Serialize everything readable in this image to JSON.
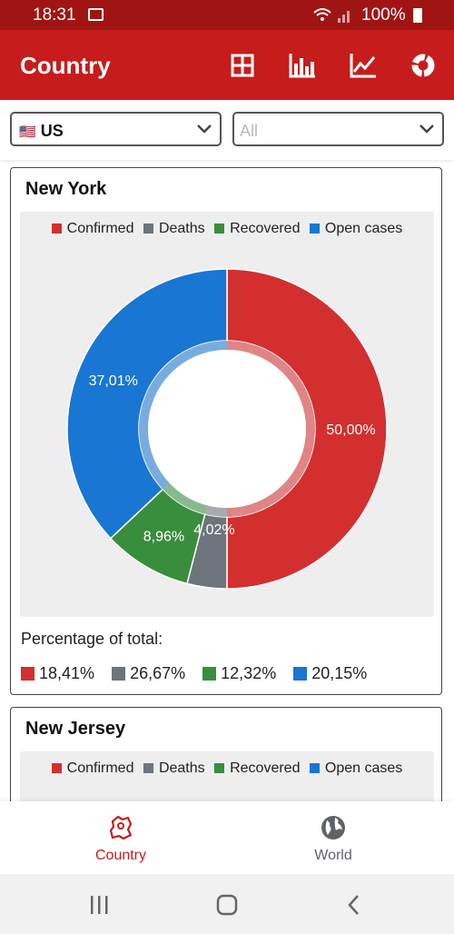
{
  "status_bar": {
    "time": "18:31",
    "battery": "100%"
  },
  "app_bar": {
    "title": "Country",
    "actions": [
      "grid-view-icon",
      "bar-chart-icon",
      "line-chart-icon",
      "donut-chart-icon"
    ]
  },
  "filters": {
    "country": {
      "flag": "🇺🇸",
      "value": "US"
    },
    "region": {
      "value": "All"
    }
  },
  "cards": [
    {
      "name": "New York",
      "legend": [
        "Confirmed",
        "Deaths",
        "Recovered",
        "Open cases"
      ],
      "chart_data": {
        "type": "pie",
        "labels": [
          "Confirmed",
          "Deaths",
          "Recovered",
          "Open cases"
        ],
        "values": [
          50.0,
          4.02,
          8.96,
          37.01
        ],
        "value_labels": [
          "50,00%",
          "4,02%",
          "8,96%",
          "37,01%"
        ],
        "colors": [
          "#d32f2f",
          "#6d747c",
          "#388e3c",
          "#1976d2"
        ]
      },
      "percentage_title": "Percentage of total:",
      "percentages": [
        "18,41%",
        "26,67%",
        "12,32%",
        "20,15%"
      ]
    },
    {
      "name": "New Jersey",
      "legend": [
        "Confirmed",
        "Deaths",
        "Recovered",
        "Open cases"
      ]
    }
  ],
  "colors": {
    "confirmed": "#d32f2f",
    "deaths": "#6d747c",
    "recovered": "#388e3c",
    "open": "#1976d2",
    "primary": "#c61c1c"
  },
  "bottom_nav": [
    {
      "label": "Country",
      "icon": "country-map-icon",
      "active": true
    },
    {
      "label": "World",
      "icon": "globe-icon",
      "active": false
    }
  ],
  "system_nav": [
    "recents-icon",
    "home-icon",
    "back-icon"
  ]
}
